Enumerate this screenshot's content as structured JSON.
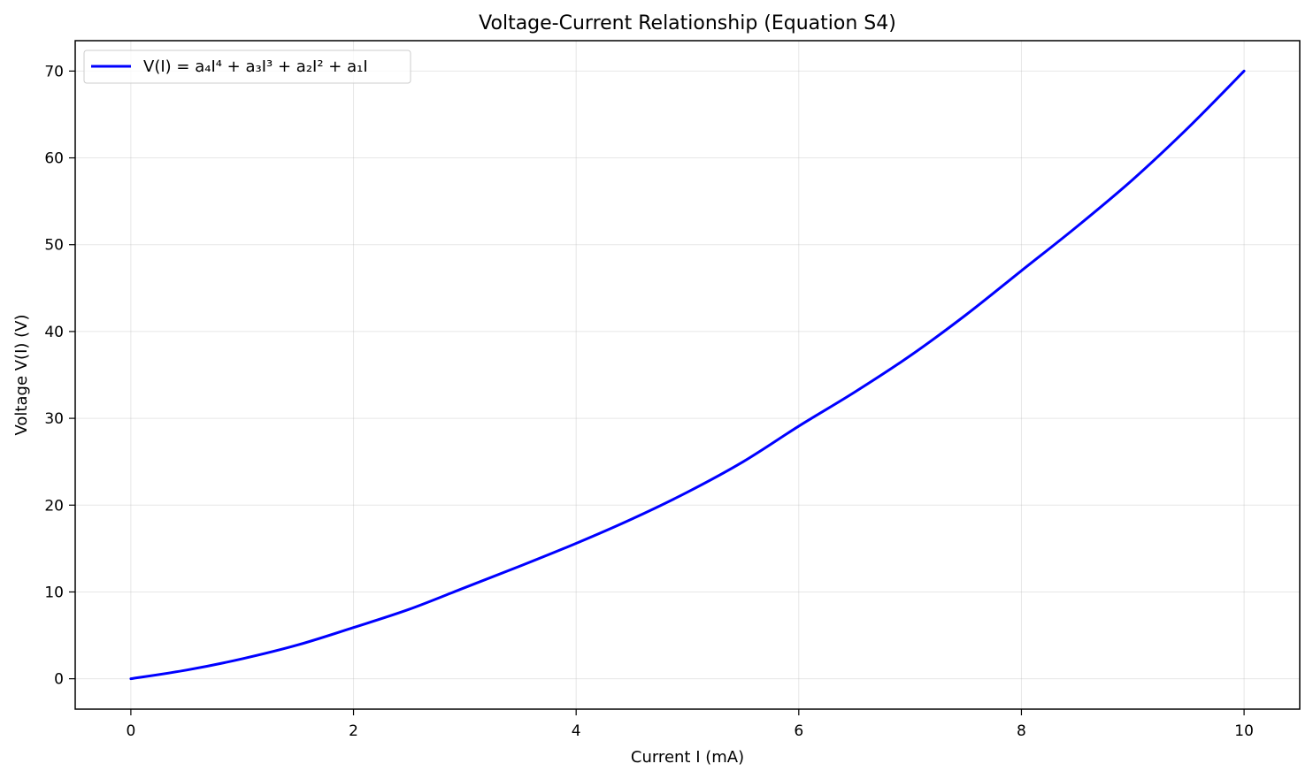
{
  "chart_data": {
    "type": "line",
    "title": "Voltage-Current Relationship (Equation S4)",
    "xlabel": "Current I (mA)",
    "ylabel": "Voltage V(I) (V)",
    "xlim": [
      -0.5,
      10.5
    ],
    "ylim": [
      -3.5,
      73.5
    ],
    "xticks": [
      0,
      2,
      4,
      6,
      8,
      10
    ],
    "yticks": [
      0,
      10,
      20,
      30,
      40,
      50,
      60,
      70
    ],
    "grid": true,
    "legend_position": "upper-left",
    "series": [
      {
        "name": "V(I) = a₄I⁴ + a₃I³ + a₂I² + a₁I",
        "color": "#0000ff",
        "x": [
          0,
          0.5,
          1,
          1.5,
          2,
          2.5,
          3,
          3.5,
          4,
          4.5,
          5,
          5.5,
          6,
          6.5,
          7,
          7.5,
          8,
          8.5,
          9,
          9.5,
          10
        ],
        "y": [
          0,
          1.0,
          2.3,
          3.9,
          5.9,
          8.0,
          10.5,
          13.0,
          15.6,
          18.4,
          21.5,
          25.0,
          29.1,
          33.0,
          37.2,
          41.9,
          47.0,
          52.1,
          57.5,
          63.5,
          70.0
        ]
      }
    ]
  }
}
